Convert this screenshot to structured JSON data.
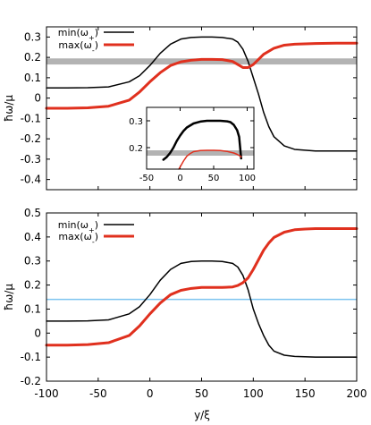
{
  "colors": {
    "min_omega": "#000000",
    "max_omega": "#e0301e",
    "gap_band": "#b3b3b3",
    "cyan_line": "#7ec4f0"
  },
  "chart_data": [
    {
      "type": "line",
      "ylabel": "ħω/μ",
      "ylim": [
        -0.45,
        0.35
      ],
      "yticks": [
        "-0.4",
        "-0.3",
        "-0.2",
        "-0.1",
        "0",
        "0.1",
        "0.2",
        "0.3"
      ],
      "xlim": [
        -100,
        200
      ],
      "legend": {
        "placement": "top-left",
        "entries": [
          "min(ω+)",
          "max(ω-)"
        ]
      },
      "band": {
        "y_from": 0.165,
        "y_to": 0.195
      },
      "series": [
        {
          "name": "min(ω+)",
          "x": [
            -100,
            -80,
            -60,
            -40,
            -20,
            -10,
            0,
            10,
            20,
            30,
            40,
            50,
            60,
            70,
            80,
            85,
            90,
            95,
            100,
            105,
            110,
            115,
            120,
            130,
            140,
            160,
            180,
            200
          ],
          "y": [
            0.05,
            0.05,
            0.051,
            0.055,
            0.08,
            0.11,
            0.16,
            0.22,
            0.265,
            0.29,
            0.298,
            0.3,
            0.3,
            0.298,
            0.29,
            0.275,
            0.24,
            0.18,
            0.1,
            0.02,
            -0.07,
            -0.14,
            -0.19,
            -0.235,
            -0.252,
            -0.26,
            -0.26,
            -0.26
          ]
        },
        {
          "name": "max(ω-)",
          "x": [
            -100,
            -80,
            -60,
            -40,
            -20,
            -10,
            0,
            10,
            20,
            30,
            40,
            50,
            60,
            70,
            80,
            85,
            90,
            95,
            100,
            105,
            110,
            120,
            130,
            140,
            160,
            180,
            200
          ],
          "y": [
            -0.05,
            -0.05,
            -0.048,
            -0.04,
            -0.01,
            0.03,
            0.08,
            0.125,
            0.16,
            0.178,
            0.186,
            0.19,
            0.19,
            0.189,
            0.18,
            0.165,
            0.15,
            0.15,
            0.165,
            0.19,
            0.215,
            0.245,
            0.26,
            0.265,
            0.268,
            0.27,
            0.27
          ]
        }
      ]
    },
    {
      "type": "line",
      "inset": true,
      "xlim": [
        -50,
        110
      ],
      "xticks": [
        "-50",
        "0",
        "50",
        "100"
      ],
      "ylim": [
        0.12,
        0.35
      ],
      "yticks": [
        "0.2",
        "0.3"
      ],
      "band": {
        "y_from": 0.17,
        "y_to": 0.19
      },
      "series": [
        {
          "name": "min(ω+)",
          "x": [
            -25,
            -20,
            -15,
            -10,
            -5,
            0,
            5,
            10,
            20,
            30,
            40,
            50,
            60,
            70,
            75,
            80,
            85,
            88,
            91
          ],
          "y": [
            0.155,
            0.165,
            0.18,
            0.2,
            0.225,
            0.245,
            0.262,
            0.275,
            0.29,
            0.297,
            0.3,
            0.3,
            0.3,
            0.298,
            0.295,
            0.285,
            0.265,
            0.24,
            0.16
          ]
        },
        {
          "name": "max(ω-)",
          "x": [
            -2,
            0,
            5,
            10,
            15,
            20,
            30,
            40,
            50,
            60,
            70,
            80,
            85,
            90,
            91
          ],
          "y": [
            0.12,
            0.128,
            0.15,
            0.168,
            0.178,
            0.185,
            0.189,
            0.19,
            0.19,
            0.189,
            0.186,
            0.18,
            0.175,
            0.168,
            0.165
          ]
        }
      ]
    },
    {
      "type": "line",
      "xlabel": "y/ξ",
      "ylabel": "ħω/μ",
      "xlim": [
        -100,
        200
      ],
      "xticks": [
        "-100",
        "-50",
        "0",
        "50",
        "100",
        "150",
        "200"
      ],
      "ylim": [
        -0.2,
        0.5
      ],
      "yticks": [
        "-0.2",
        "-0.1",
        "0",
        "0.1",
        "0.2",
        "0.3",
        "0.4",
        "0.5"
      ],
      "legend": {
        "placement": "top-left",
        "entries": [
          "min(ω+)",
          "max(ω-)"
        ]
      },
      "hline": {
        "y": 0.14,
        "color_key": "cyan_line"
      },
      "series": [
        {
          "name": "min(ω+)",
          "x": [
            -100,
            -80,
            -60,
            -40,
            -20,
            -10,
            0,
            10,
            20,
            30,
            40,
            50,
            60,
            70,
            80,
            85,
            90,
            95,
            100,
            105,
            110,
            115,
            120,
            130,
            140,
            160,
            180,
            200
          ],
          "y": [
            0.05,
            0.05,
            0.051,
            0.055,
            0.08,
            0.11,
            0.16,
            0.22,
            0.265,
            0.29,
            0.298,
            0.3,
            0.3,
            0.298,
            0.29,
            0.275,
            0.24,
            0.18,
            0.1,
            0.04,
            -0.01,
            -0.05,
            -0.075,
            -0.092,
            -0.097,
            -0.1,
            -0.1,
            -0.1
          ]
        },
        {
          "name": "max(ω-)",
          "x": [
            -100,
            -80,
            -60,
            -40,
            -20,
            -10,
            0,
            10,
            20,
            30,
            40,
            50,
            60,
            70,
            80,
            85,
            90,
            95,
            100,
            105,
            110,
            115,
            120,
            130,
            140,
            150,
            160,
            180,
            200
          ],
          "y": [
            -0.05,
            -0.05,
            -0.048,
            -0.04,
            -0.01,
            0.03,
            0.08,
            0.125,
            0.16,
            0.178,
            0.186,
            0.19,
            0.19,
            0.19,
            0.192,
            0.198,
            0.21,
            0.23,
            0.265,
            0.305,
            0.345,
            0.375,
            0.398,
            0.42,
            0.43,
            0.433,
            0.435,
            0.435,
            0.435
          ]
        }
      ]
    }
  ]
}
